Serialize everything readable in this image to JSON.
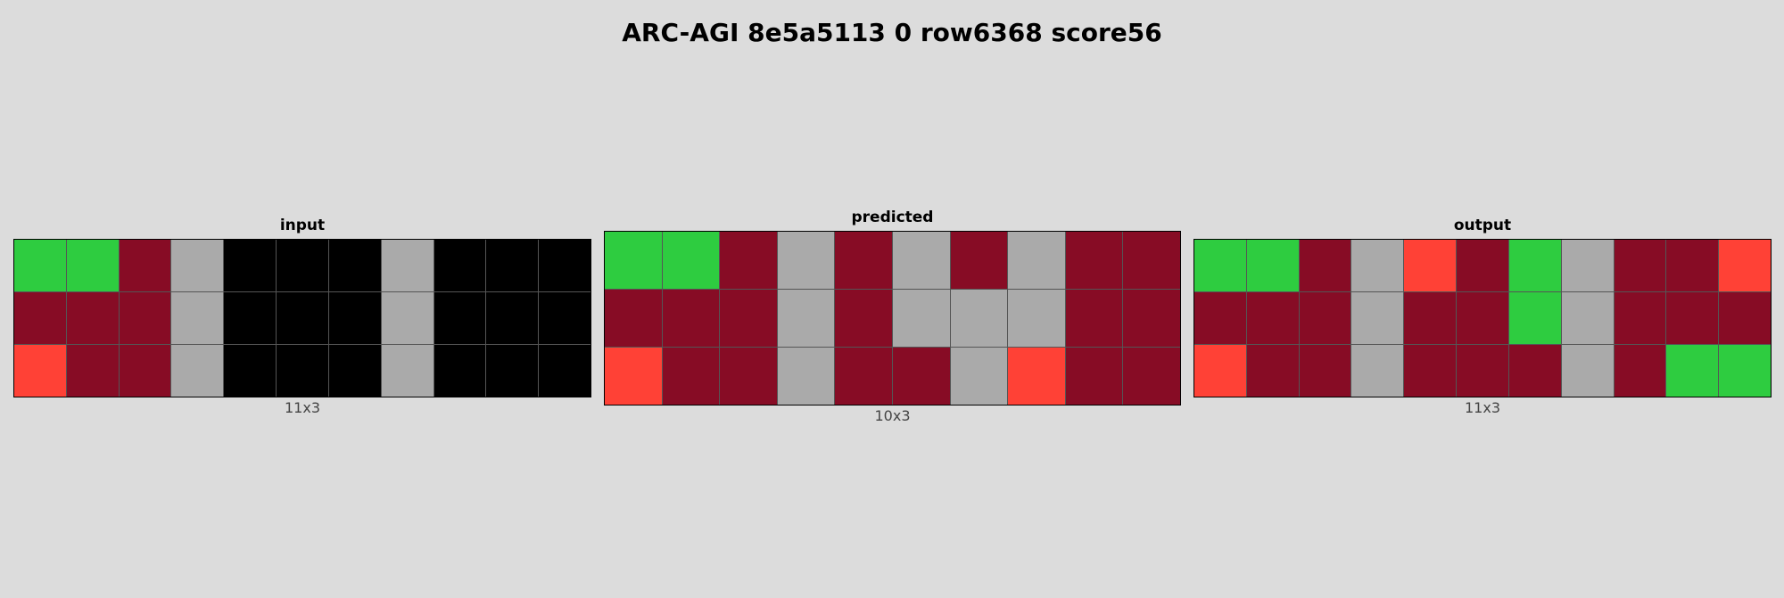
{
  "title": "ARC-AGI 8e5a5113 0 row6368 score56",
  "palette": {
    "0": "#000000",
    "2": "#ff4136",
    "3": "#2ecc40",
    "5": "#aaaaaa",
    "9": "#870c25"
  },
  "panels": [
    {
      "label": "input",
      "dims": "11x3",
      "cols": 11,
      "rows": 3,
      "cells": [
        [
          3,
          3,
          9,
          5,
          0,
          0,
          0,
          5,
          0,
          0,
          0
        ],
        [
          9,
          9,
          9,
          5,
          0,
          0,
          0,
          5,
          0,
          0,
          0
        ],
        [
          2,
          9,
          9,
          5,
          0,
          0,
          0,
          5,
          0,
          0,
          0
        ]
      ]
    },
    {
      "label": "predicted",
      "dims": "10x3",
      "cols": 10,
      "rows": 3,
      "cells": [
        [
          3,
          3,
          9,
          5,
          9,
          5,
          9,
          5,
          9,
          9
        ],
        [
          9,
          9,
          9,
          5,
          9,
          5,
          5,
          5,
          9,
          9
        ],
        [
          2,
          9,
          9,
          5,
          9,
          9,
          5,
          2,
          9,
          9
        ]
      ]
    },
    {
      "label": "output",
      "dims": "11x3",
      "cols": 11,
      "rows": 3,
      "cells": [
        [
          3,
          3,
          9,
          5,
          2,
          9,
          3,
          5,
          9,
          9,
          2
        ],
        [
          9,
          9,
          9,
          5,
          9,
          9,
          3,
          5,
          9,
          9,
          9
        ],
        [
          2,
          9,
          9,
          5,
          9,
          9,
          9,
          5,
          9,
          3,
          3
        ]
      ]
    }
  ]
}
